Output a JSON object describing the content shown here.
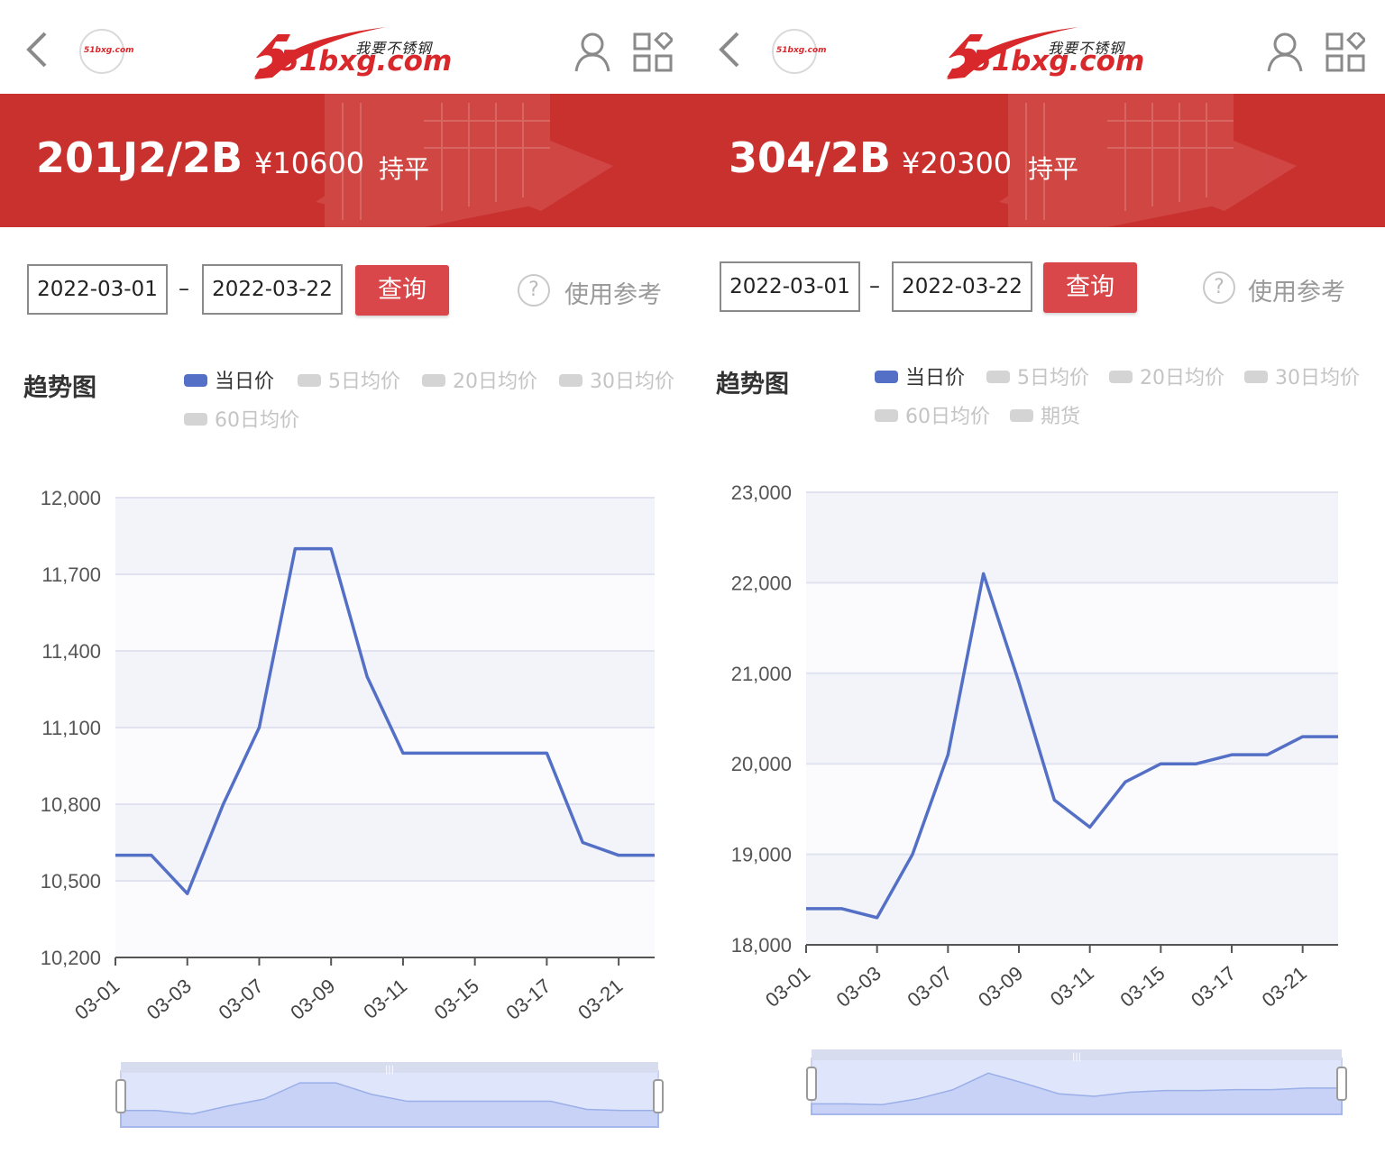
{
  "header": {
    "brand_domain": "51bxg.com",
    "brand_cn": "我要不锈钢",
    "logo_badge": "51bxg.com"
  },
  "colors": {
    "brand_red": "#d8282b",
    "banner_red": "#c9312f",
    "query_button": "#d9474a",
    "series_blue": "#5470c6"
  },
  "icons": [
    "back-arrow-icon",
    "user-icon",
    "grid-apps-icon",
    "help-circle-icon"
  ],
  "left": {
    "product": "201J2/2B",
    "price": "¥10600",
    "status": "持平",
    "date_from": "2022-03-01",
    "date_sep": "–",
    "date_to": "2022-03-22",
    "query_label": "查询",
    "help_label": "使用参考",
    "section_title": "趋势图",
    "legend": [
      {
        "label": "当日价",
        "active": true
      },
      {
        "label": "5日均价",
        "active": false
      },
      {
        "label": "20日均价",
        "active": false
      },
      {
        "label": "30日均价",
        "active": false
      },
      {
        "label": "60日均价",
        "active": false
      }
    ]
  },
  "right": {
    "product": "304/2B",
    "price": "¥20300",
    "status": "持平",
    "date_from": "2022-03-01",
    "date_sep": "–",
    "date_to": "2022-03-22",
    "query_label": "查询",
    "help_label": "使用参考",
    "section_title": "趋势图",
    "legend": [
      {
        "label": "当日价",
        "active": true
      },
      {
        "label": "5日均价",
        "active": false
      },
      {
        "label": "20日均价",
        "active": false
      },
      {
        "label": "30日均价",
        "active": false
      },
      {
        "label": "60日均价",
        "active": false
      },
      {
        "label": "期货",
        "active": false
      }
    ]
  },
  "chart_data": [
    {
      "type": "line",
      "series": [
        {
          "name": "当日价",
          "x": [
            "03-01",
            "03-02",
            "03-03",
            "03-04",
            "03-07",
            "03-08",
            "03-09",
            "03-10",
            "03-11",
            "03-14",
            "03-15",
            "03-16",
            "03-17",
            "03-18",
            "03-21",
            "03-22"
          ],
          "values": [
            10600,
            10600,
            10450,
            10800,
            11100,
            11800,
            11800,
            11300,
            11000,
            11000,
            11000,
            11000,
            11000,
            10650,
            10600,
            10600
          ]
        }
      ],
      "xticks": [
        "03-01",
        "03-03",
        "03-07",
        "03-09",
        "03-11",
        "03-15",
        "03-17",
        "03-21"
      ],
      "yticks": [
        "10,200",
        "10,500",
        "10,800",
        "11,100",
        "11,400",
        "11,700",
        "12,000"
      ],
      "ylim": [
        10200,
        12000
      ],
      "grid": true,
      "dataZoom": true
    },
    {
      "type": "line",
      "series": [
        {
          "name": "当日价",
          "x": [
            "03-01",
            "03-02",
            "03-03",
            "03-04",
            "03-07",
            "03-08",
            "03-09",
            "03-10",
            "03-11",
            "03-14",
            "03-15",
            "03-16",
            "03-17",
            "03-18",
            "03-21",
            "03-22"
          ],
          "values": [
            18400,
            18400,
            18300,
            19000,
            20100,
            22100,
            20900,
            19600,
            19300,
            19800,
            20000,
            20000,
            20100,
            20100,
            20300,
            20300
          ]
        }
      ],
      "xticks": [
        "03-01",
        "03-03",
        "03-07",
        "03-09",
        "03-11",
        "03-15",
        "03-17",
        "03-21"
      ],
      "yticks": [
        "18,000",
        "19,000",
        "20,000",
        "21,000",
        "22,000",
        "23,000"
      ],
      "ylim": [
        18000,
        23000
      ],
      "grid": true,
      "dataZoom": true
    }
  ]
}
